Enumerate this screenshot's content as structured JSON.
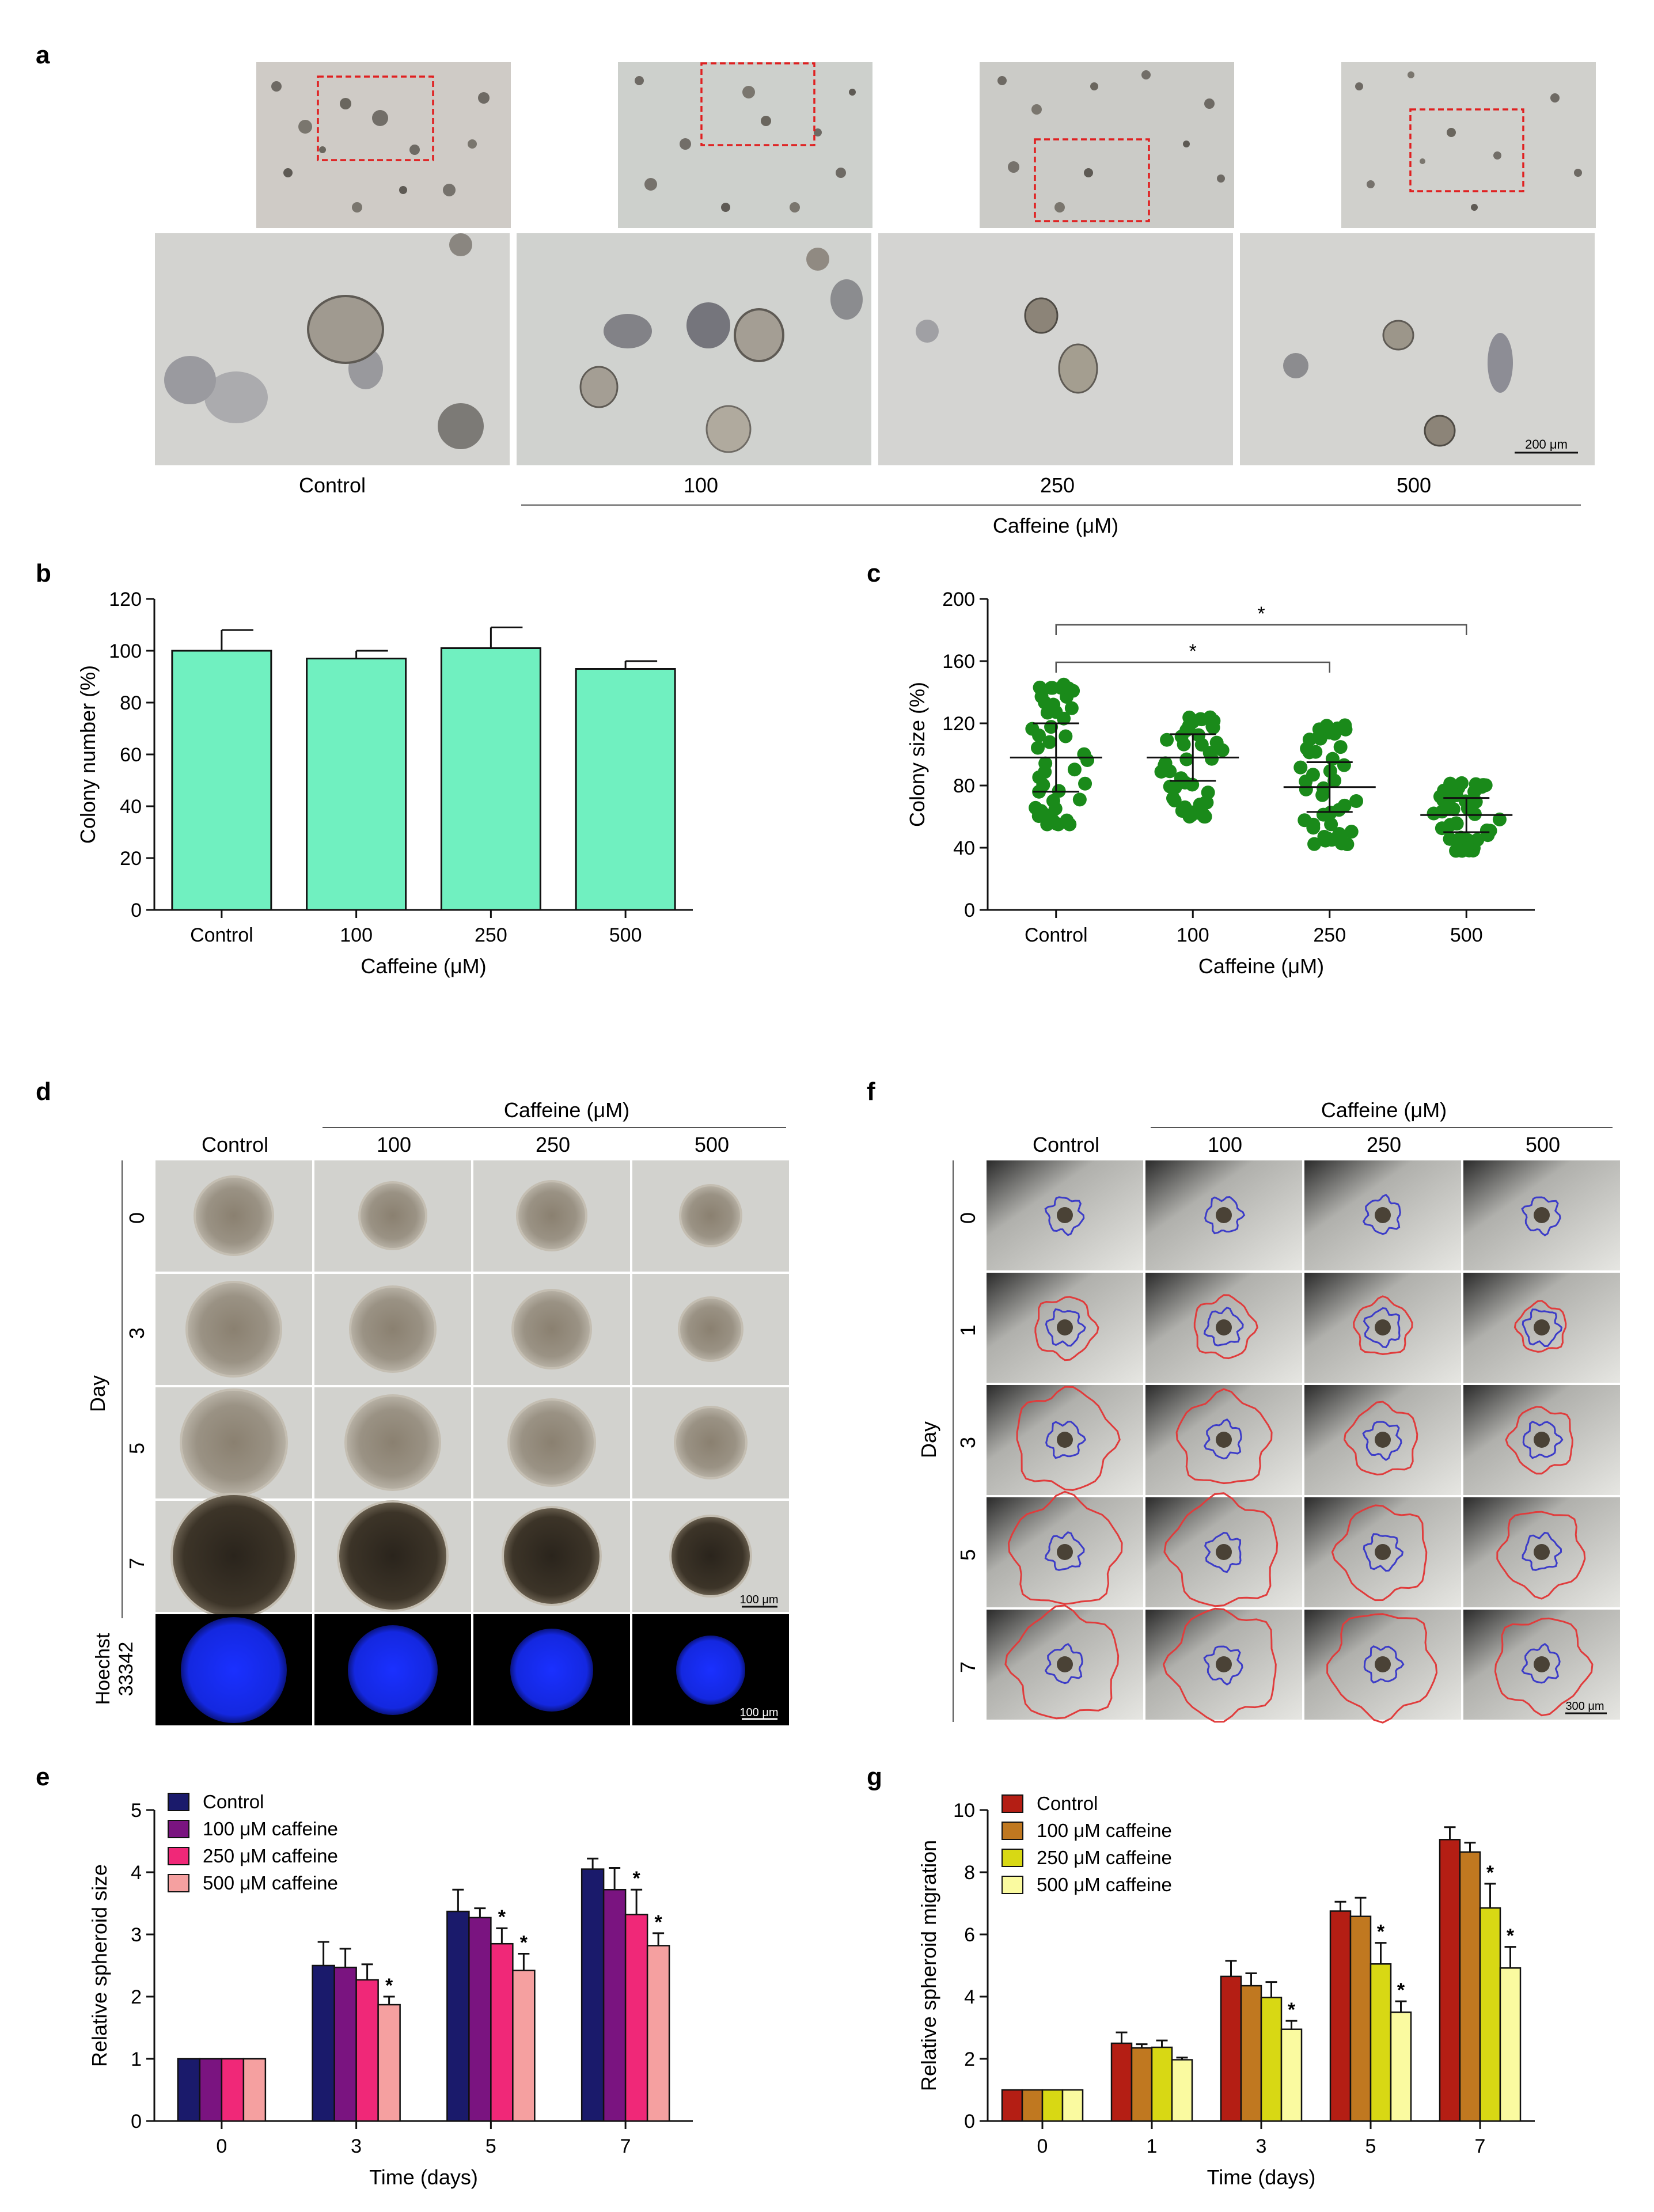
{
  "panels": {
    "a": "a",
    "b": "b",
    "c": "c",
    "d": "d",
    "e": "e",
    "f": "f",
    "g": "g"
  },
  "colors": {
    "panel_b_bar": "#70f0c0",
    "panel_c_dot": "#1a8a1a",
    "e_series": [
      "#1a1a6b",
      "#7a1480",
      "#f02878",
      "#f5a0a0"
    ],
    "g_series": [
      "#b41e14",
      "#c07820",
      "#d8d814",
      "#fafaa0"
    ],
    "roi_inner": "#3c3cc8",
    "roi_outer": "#e03c3c",
    "microscopy_bg": "#d2d2ce",
    "hoechst": "#1428f0"
  },
  "panel_a": {
    "col_labels": [
      "Control",
      "100",
      "250",
      "500"
    ],
    "axis_title": "Caffeine (μM)",
    "scale_bar": "200 μm"
  },
  "panel_d": {
    "header": "Caffeine (μM)",
    "col_labels": [
      "Control",
      "100",
      "250",
      "500"
    ],
    "row_title": "Day",
    "row_labels": [
      "0",
      "3",
      "5",
      "7"
    ],
    "hoechst_label_1": "Hoechst",
    "hoechst_label_2": "33342",
    "scale_bar_1": "100 μm",
    "scale_bar_2": "100 μm"
  },
  "panel_f": {
    "header": "Caffeine (μM)",
    "col_labels": [
      "Control",
      "100",
      "250",
      "500"
    ],
    "row_title": "Day",
    "row_labels": [
      "0",
      "1",
      "3",
      "5",
      "7"
    ],
    "scale_bar": "300 μm"
  },
  "chart_data": [
    {
      "panel": "b",
      "type": "bar",
      "categories": [
        "Control",
        "100",
        "250",
        "500"
      ],
      "values": [
        100,
        97,
        101,
        93
      ],
      "errors": [
        8,
        3,
        8,
        3
      ],
      "xlabel": "Caffeine (μM)",
      "ylabel": "Colony number (%)",
      "ylim": [
        0,
        120
      ],
      "yticks": [
        "0",
        "20",
        "40",
        "60",
        "80",
        "100",
        "120"
      ]
    },
    {
      "panel": "c",
      "type": "scatter",
      "categories": [
        "Control",
        "100",
        "250",
        "500"
      ],
      "means": [
        98,
        98,
        79,
        61
      ],
      "sd": [
        22,
        15,
        16,
        11
      ],
      "ranges": [
        [
          55,
          146
        ],
        [
          60,
          124
        ],
        [
          42,
          120
        ],
        [
          38,
          82
        ]
      ],
      "xlabel": "Caffeine (μM)",
      "ylabel": "Colony size (%)",
      "ylim": [
        0,
        200
      ],
      "yticks": [
        "0",
        "40",
        "80",
        "120",
        "160",
        "200"
      ],
      "significance": [
        {
          "from": "Control",
          "to": "250",
          "label": "*"
        },
        {
          "from": "Control",
          "to": "500",
          "label": "*"
        }
      ]
    },
    {
      "panel": "e",
      "type": "bar",
      "categories": [
        "0",
        "3",
        "5",
        "7"
      ],
      "series": [
        {
          "name": "Control",
          "values": [
            1,
            2.5,
            3.37,
            4.05
          ],
          "errors": [
            0,
            0.38,
            0.35,
            0.17
          ]
        },
        {
          "name": "100 μM caffeine",
          "values": [
            1,
            2.47,
            3.27,
            3.72
          ],
          "errors": [
            0,
            0.3,
            0.15,
            0.35
          ]
        },
        {
          "name": "250 μM caffeine",
          "values": [
            1,
            2.27,
            2.85,
            3.32
          ],
          "errors": [
            0,
            0.25,
            0.25,
            0.4
          ]
        },
        {
          "name": "500 μM caffeine",
          "values": [
            1,
            1.87,
            2.42,
            2.82
          ],
          "errors": [
            0,
            0.13,
            0.27,
            0.2
          ]
        }
      ],
      "significance": [
        [
          false,
          false,
          false,
          false
        ],
        [
          false,
          false,
          false,
          false
        ],
        [
          false,
          false,
          true,
          true
        ],
        [
          false,
          true,
          true,
          true
        ]
      ],
      "xlabel": "Time (days)",
      "ylabel": "Relative spheroid size",
      "ylim": [
        0,
        5
      ],
      "yticks": [
        "0",
        "1",
        "2",
        "3",
        "4",
        "5"
      ]
    },
    {
      "panel": "g",
      "type": "bar",
      "categories": [
        "0",
        "1",
        "3",
        "5",
        "7"
      ],
      "series": [
        {
          "name": "Control",
          "values": [
            1,
            2.5,
            4.65,
            6.75,
            9.05
          ],
          "errors": [
            0,
            0.35,
            0.5,
            0.3,
            0.4
          ]
        },
        {
          "name": "100 μM caffeine",
          "values": [
            1,
            2.35,
            4.35,
            6.58,
            8.65
          ],
          "errors": [
            0,
            0.12,
            0.4,
            0.6,
            0.3
          ]
        },
        {
          "name": "250 μM caffeine",
          "values": [
            1,
            2.37,
            3.97,
            5.05,
            6.85
          ],
          "errors": [
            0,
            0.22,
            0.5,
            0.68,
            0.78
          ]
        },
        {
          "name": "500 μM caffeine",
          "values": [
            1,
            1.97,
            2.95,
            3.5,
            4.92
          ],
          "errors": [
            0,
            0.07,
            0.27,
            0.35,
            0.68
          ]
        }
      ],
      "significance": [
        [
          false,
          false,
          false,
          false,
          false
        ],
        [
          false,
          false,
          false,
          false,
          false
        ],
        [
          false,
          false,
          false,
          true,
          true
        ],
        [
          false,
          false,
          true,
          true,
          true
        ]
      ],
      "xlabel": "Time (days)",
      "ylabel": "Relative spheroid migration",
      "ylim": [
        0,
        10
      ],
      "yticks": [
        "0",
        "2",
        "4",
        "6",
        "8",
        "10"
      ]
    }
  ]
}
